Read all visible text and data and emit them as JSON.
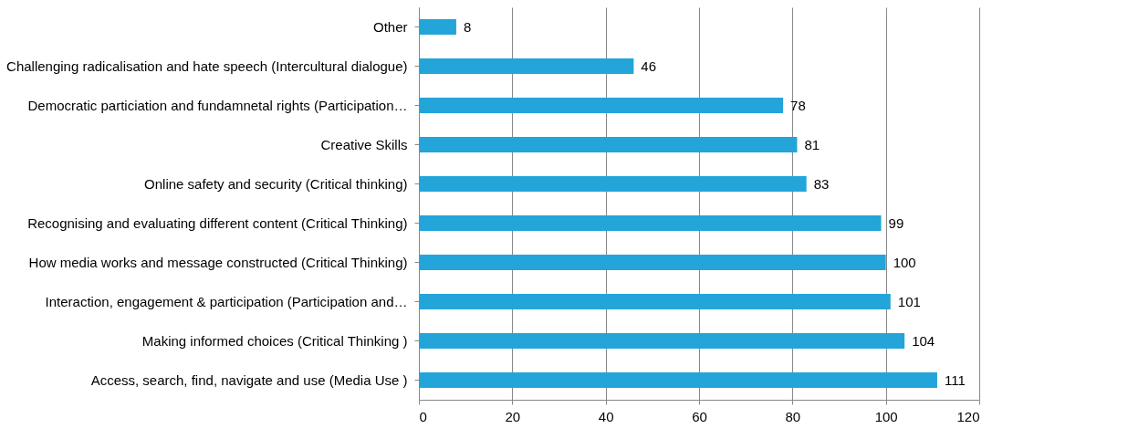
{
  "chart_data": {
    "type": "bar",
    "orientation": "horizontal",
    "categories": [
      "Other",
      "Challenging radicalisation and hate speech (Intercultural dialogue)",
      "Democratic particiation and fundamnetal rights (Participation…",
      "Creative Skills",
      "Online safety and security (Critical thinking)",
      "Recognising and evaluating different content (Critical Thinking)",
      "How media works and message constructed (Critical Thinking)",
      "Interaction, engagement & participation (Participation and…",
      "Making informed choices (Critical Thinking )",
      "Access, search, find, navigate and use (Media Use )"
    ],
    "values": [
      8,
      46,
      78,
      81,
      83,
      99,
      100,
      101,
      104,
      111
    ],
    "color": "#23a5d9",
    "xlim": [
      0,
      120
    ],
    "xticks": [
      0,
      20,
      40,
      60,
      80,
      100,
      120
    ],
    "grid": "x",
    "data_labels": true
  }
}
